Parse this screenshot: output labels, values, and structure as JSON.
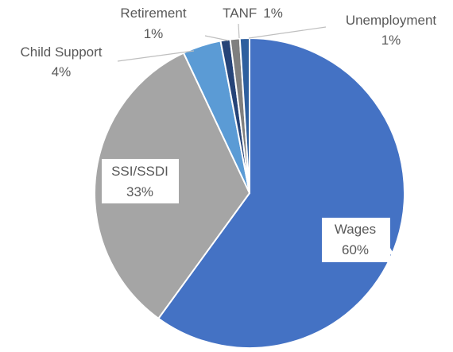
{
  "chart_data": {
    "type": "pie",
    "categories": [
      "Wages",
      "SSI/SSDI",
      "Child Support",
      "Retirement",
      "TANF",
      "Unemployment"
    ],
    "values": [
      60,
      33,
      4,
      1,
      1,
      1
    ],
    "value_labels": [
      "60%",
      "33%",
      "4%",
      "1%",
      "1%",
      "1%"
    ],
    "colors": [
      "#4472c4",
      "#a5a5a5",
      "#5b9bd5",
      "#264478",
      "#7f7f7f",
      "#2e5f9e"
    ]
  }
}
